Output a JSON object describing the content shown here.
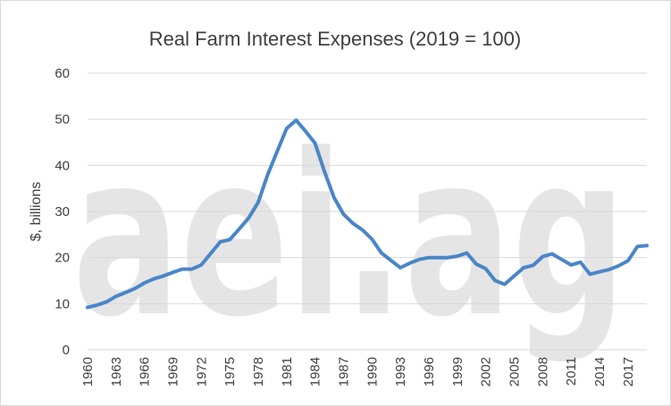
{
  "chart_data": {
    "type": "line",
    "title": "Real Farm Interest Expenses (2019 = 100)",
    "xlabel": "",
    "ylabel": "$, billions",
    "ylim": [
      0,
      60
    ],
    "yticks": [
      0,
      10,
      20,
      30,
      40,
      50,
      60
    ],
    "xticks": [
      "1960",
      "1963",
      "1966",
      "1969",
      "1972",
      "1975",
      "1978",
      "1981",
      "1984",
      "1987",
      "1990",
      "1993",
      "1996",
      "1999",
      "2002",
      "2005",
      "2008",
      "2011",
      "2014",
      "2017"
    ],
    "grid": true,
    "legend": "none",
    "watermark": "aei.ag",
    "series_color": "#4a86c8",
    "x": [
      1960,
      1961,
      1962,
      1963,
      1964,
      1965,
      1966,
      1967,
      1968,
      1969,
      1970,
      1971,
      1972,
      1973,
      1974,
      1975,
      1976,
      1977,
      1978,
      1979,
      1980,
      1981,
      1982,
      1983,
      1984,
      1985,
      1986,
      1987,
      1988,
      1989,
      1990,
      1991,
      1992,
      1993,
      1994,
      1995,
      1996,
      1997,
      1998,
      1999,
      2000,
      2001,
      2002,
      2003,
      2004,
      2005,
      2006,
      2007,
      2008,
      2009,
      2010,
      2011,
      2012,
      2013,
      2014,
      2015,
      2016,
      2017,
      2018,
      2019
    ],
    "values": [
      9.2,
      9.7,
      10.4,
      11.6,
      12.4,
      13.3,
      14.5,
      15.4,
      16.0,
      16.8,
      17.5,
      17.5,
      18.4,
      20.9,
      23.4,
      23.9,
      26.2,
      28.6,
      32.0,
      38.0,
      43.0,
      48.0,
      49.8,
      47.4,
      44.8,
      38.6,
      33.0,
      29.4,
      27.4,
      26.0,
      24.0,
      21.0,
      19.4,
      17.8,
      18.8,
      19.6,
      20.0,
      20.0,
      20.0,
      20.3,
      21.0,
      18.6,
      17.6,
      15.0,
      14.2,
      16.0,
      17.8,
      18.3,
      20.2,
      20.8,
      19.6,
      18.4,
      19.0,
      16.4,
      16.9,
      17.4,
      18.2,
      19.3,
      22.4,
      22.6
    ]
  }
}
